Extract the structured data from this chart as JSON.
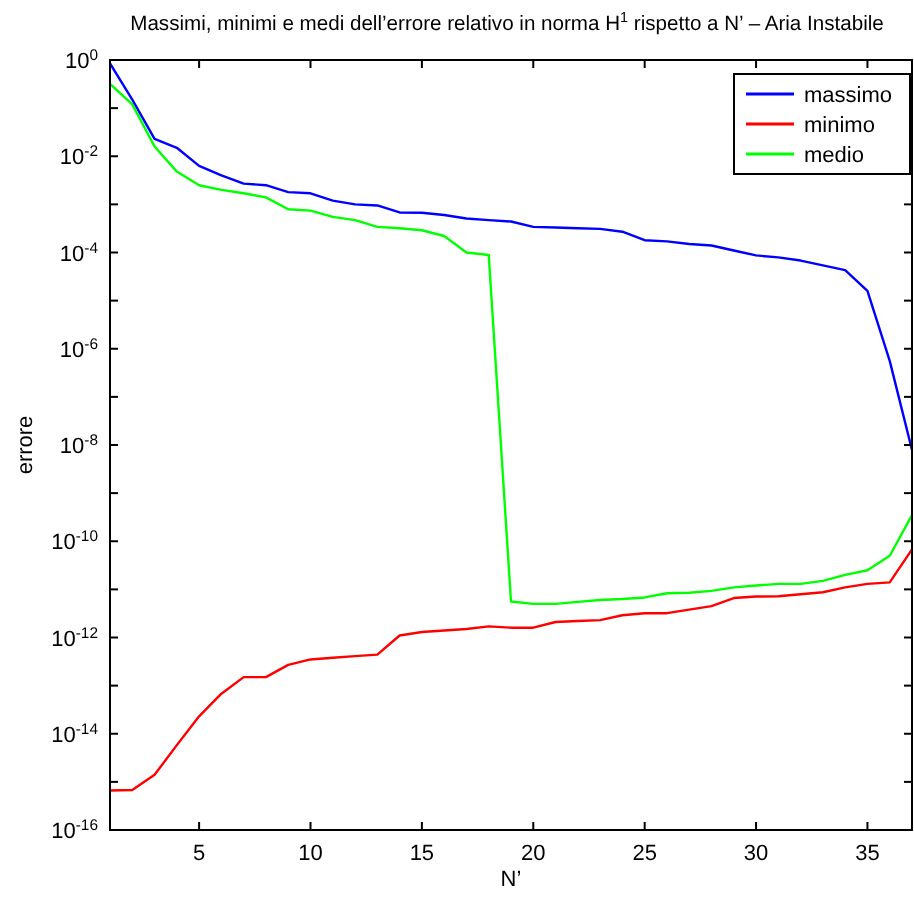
{
  "chart_data": {
    "type": "line",
    "title": "Massimi, minimi e medi dell’errore relativo in norma H$^{1}$ rispetto a N’ – Aria Instabile",
    "xlabel": "N’",
    "ylabel": "errore",
    "log": "y",
    "legend": "top right",
    "line_style": "solid",
    "marker": "none",
    "x": [
      1,
      2,
      3,
      4,
      5,
      6,
      7,
      8,
      9,
      10,
      11,
      12,
      13,
      14,
      15,
      16,
      17,
      18,
      19,
      20,
      21,
      22,
      23,
      24,
      25,
      26,
      27,
      28,
      29,
      30,
      31,
      32,
      33,
      34,
      35,
      36,
      37
    ],
    "xlim": [
      1,
      37
    ],
    "xticks": [
      5,
      10,
      15,
      20,
      25,
      30,
      35
    ],
    "ylim": [
      1e-16,
      1
    ],
    "yticks": [
      {
        "value": 1,
        "label": "10$^{0}$"
      },
      {
        "value": 0.1,
        "label": null
      },
      {
        "value": 0.01,
        "label": "10$^{-2}$"
      },
      {
        "value": 0.001,
        "label": null
      },
      {
        "value": 0.0001,
        "label": "10$^{-4}$"
      },
      {
        "value": 1e-05,
        "label": null
      },
      {
        "value": 1e-06,
        "label": "10$^{-6}$"
      },
      {
        "value": 1e-07,
        "label": null
      },
      {
        "value": 1e-08,
        "label": "10$^{-8}$"
      },
      {
        "value": 1e-09,
        "label": null
      },
      {
        "value": 1e-10,
        "label": "10$^{-10}$"
      },
      {
        "value": 1e-11,
        "label": null
      },
      {
        "value": 1e-12,
        "label": "10$^{-12}$"
      },
      {
        "value": 1e-13,
        "label": null
      },
      {
        "value": 1e-14,
        "label": "10$^{-14}$"
      },
      {
        "value": 1e-15,
        "label": null
      },
      {
        "value": 1e-16,
        "label": "10$^{-16}$"
      }
    ],
    "series": [
      {
        "name": "massimo",
        "color": "#0000ff",
        "values": [
          0.85,
          0.15,
          0.023,
          0.015,
          0.0063,
          0.004,
          0.0027,
          0.0025,
          0.0018,
          0.0017,
          0.0012,
          0.001,
          0.00095,
          0.00068,
          0.00067,
          0.0006,
          0.00051,
          0.00047,
          0.00044,
          0.00034,
          0.00033,
          0.00032,
          0.00031,
          0.00027,
          0.00018,
          0.00017,
          0.00015,
          0.00014,
          0.00011,
          8.7e-05,
          7.9e-05,
          6.8e-05,
          5.4e-05,
          4.3e-05,
          1.6e-05,
          5.6e-07,
          7.9e-09
        ]
      },
      {
        "name": "minimo",
        "color": "#ff0000",
        "values": [
          6.6e-16,
          6.8e-16,
          1.4e-15,
          5.8e-15,
          2.3e-14,
          6.8e-14,
          1.5e-13,
          1.5e-13,
          2.7e-13,
          3.5e-13,
          3.8e-13,
          4.1e-13,
          4.4e-13,
          1.1e-12,
          1.3e-12,
          1.4e-12,
          1.5e-12,
          1.7e-12,
          1.6e-12,
          1.6e-12,
          2.1e-12,
          2.2e-12,
          2.3e-12,
          2.9e-12,
          3.2e-12,
          3.2e-12,
          3.8e-12,
          4.5e-12,
          6.6e-12,
          7.1e-12,
          7.2e-12,
          7.9e-12,
          8.7e-12,
          1.1e-11,
          1.3e-11,
          1.4e-11,
          6.8e-11
        ]
      },
      {
        "name": "medio",
        "color": "#00ff00",
        "values": [
          0.32,
          0.12,
          0.016,
          0.0048,
          0.0025,
          0.002,
          0.0017,
          0.0014,
          0.00079,
          0.00074,
          0.00055,
          0.00047,
          0.00034,
          0.00032,
          0.00029,
          0.00022,
          0.0001,
          8.9e-05,
          5.6e-12,
          5e-12,
          5e-12,
          5.5e-12,
          6e-12,
          6.3e-12,
          6.8e-12,
          8.3e-12,
          8.5e-12,
          9.3e-12,
          1.1e-11,
          1.2e-11,
          1.3e-11,
          1.3e-11,
          1.5e-11,
          2e-11,
          2.5e-11,
          5e-11,
          3.5e-10
        ]
      }
    ]
  }
}
